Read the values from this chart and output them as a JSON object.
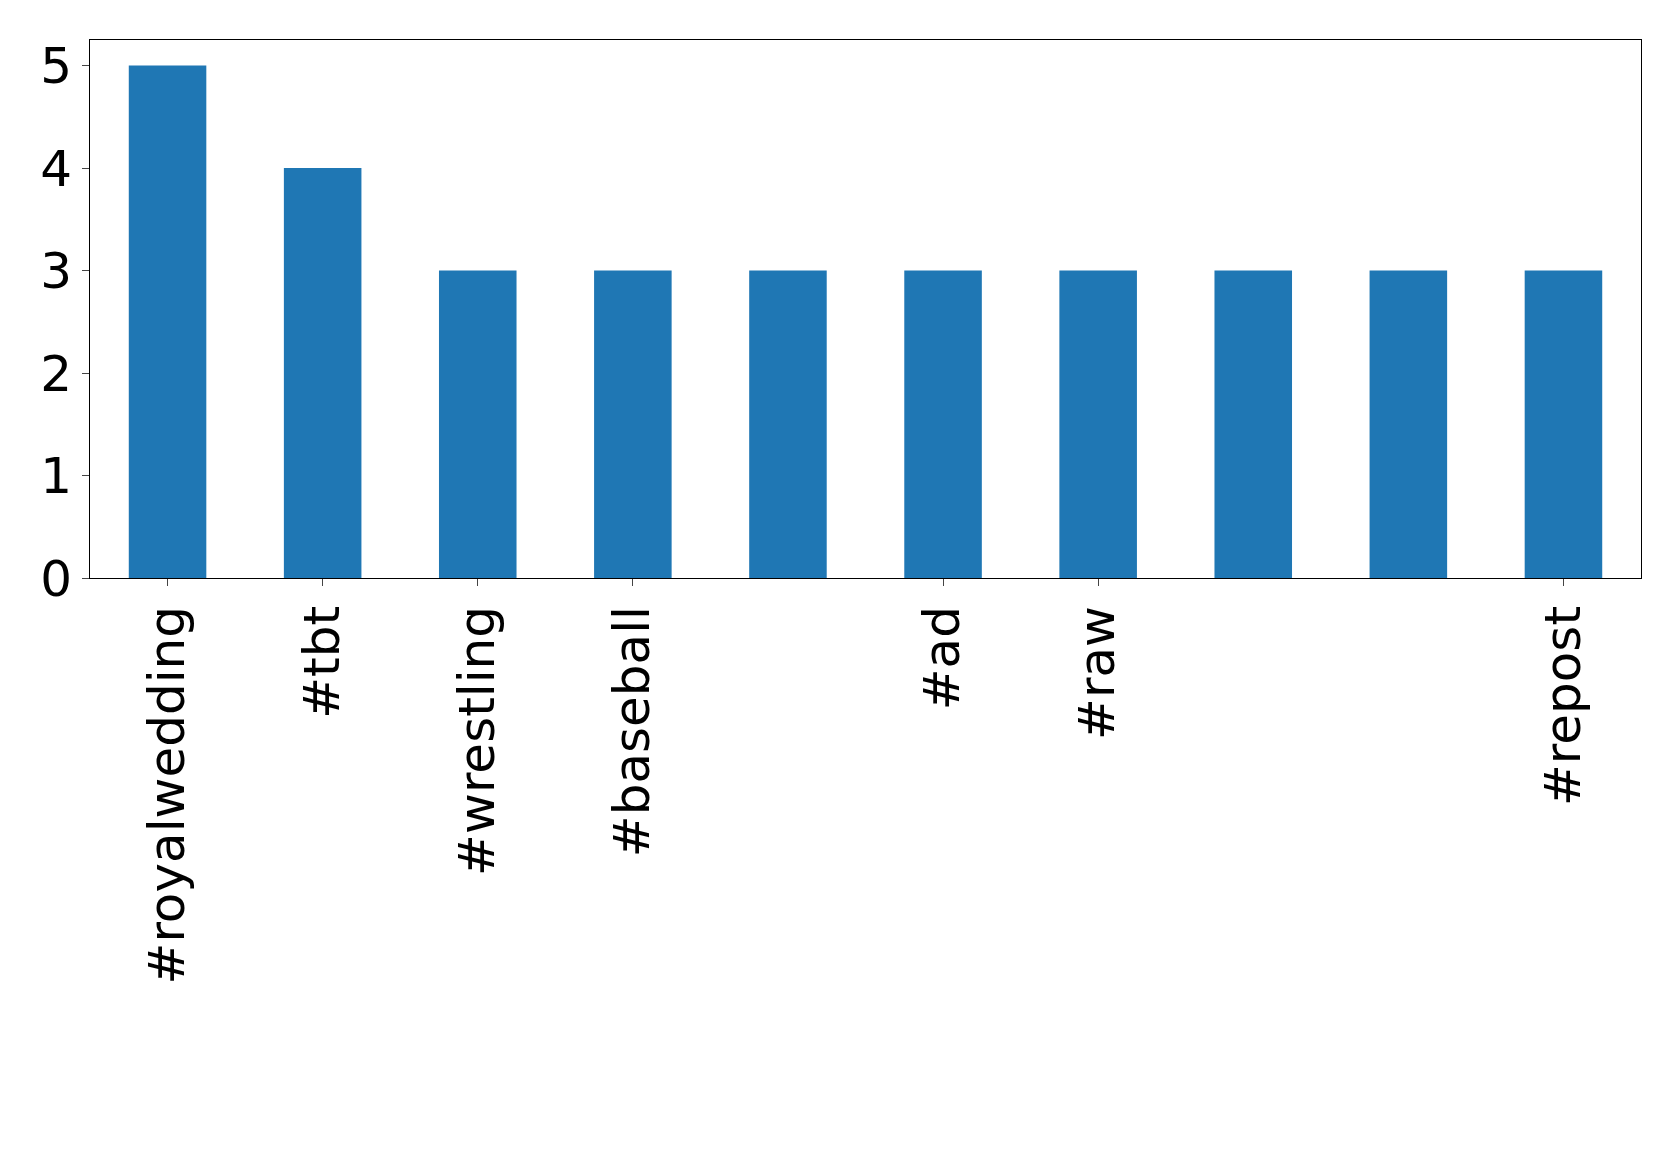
{
  "chart_data": {
    "type": "bar",
    "categories": [
      "#royalwedding",
      "#tbt",
      "#wrestling",
      "#baseball",
      null,
      "#ad",
      "#raw",
      null,
      null,
      "#repost"
    ],
    "values": [
      5,
      4,
      3,
      3,
      3,
      3,
      3,
      3,
      3,
      3
    ],
    "color": "#1f77b4",
    "ylim": [
      0,
      5.25
    ],
    "yticks": [
      0,
      1,
      2,
      3,
      4,
      5
    ],
    "grid": false,
    "legend": false
  }
}
